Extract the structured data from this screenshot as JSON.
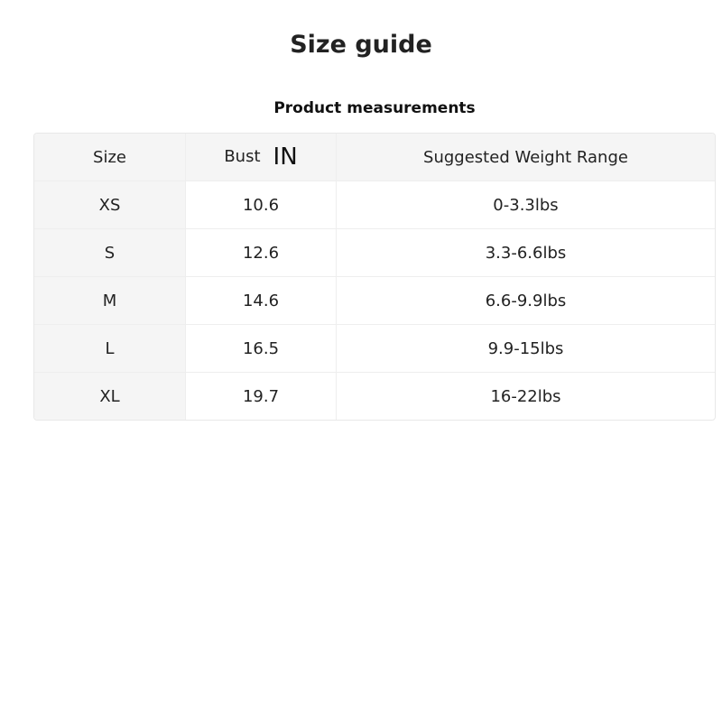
{
  "title": "Size guide",
  "subtitle": "Product measurements",
  "table": {
    "headers": [
      "Size",
      "Bust",
      "Suggested Weight Range"
    ],
    "unit": "IN",
    "rows": [
      [
        "XS",
        "10.6",
        "0-3.3lbs"
      ],
      [
        "S",
        "12.6",
        "3.3-6.6lbs"
      ],
      [
        "M",
        "14.6",
        "6.6-9.9lbs"
      ],
      [
        "L",
        "16.5",
        "9.9-15lbs"
      ],
      [
        "XL",
        "19.7",
        "16-22lbs"
      ]
    ]
  }
}
